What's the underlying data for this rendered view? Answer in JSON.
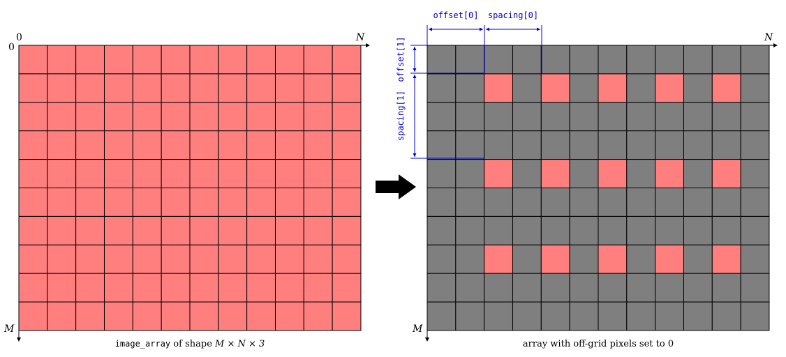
{
  "left_panel": {
    "corner_origin": "0",
    "top_origin": "0",
    "col_end": "N",
    "row_end": "M",
    "caption_code": "image_array",
    "caption_text": " of shape ",
    "caption_math": "M × N × 3",
    "rows": 10,
    "cols": 12,
    "cell_color": "#ff7f7f"
  },
  "right_panel": {
    "col_end": "N",
    "row_end": "M",
    "caption": "array with off-grid pixels set to 0",
    "rows": 10,
    "cols": 12,
    "offset": [
      2,
      1
    ],
    "spacing": [
      2,
      3
    ],
    "on_color": "#ff7f7f",
    "off_color": "#7f7f7f",
    "labels": {
      "offset0": "offset[0]",
      "spacing0": "spacing[0]",
      "offset1": "offset[1]",
      "spacing1": "spacing[1]"
    },
    "annotation_color": "#0000cc"
  },
  "arrow": {
    "color": "#000000"
  }
}
